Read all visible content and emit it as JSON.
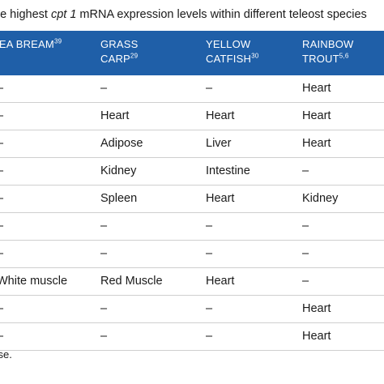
{
  "caption": {
    "prefix": "he highest ",
    "gene": "cpt 1",
    "suffix": " mRNA expression levels within different teleost species"
  },
  "table": {
    "headers": [
      {
        "line1": "SEA BREAM",
        "sup1": "39",
        "line2": "",
        "sup2": ""
      },
      {
        "line1": "GRASS",
        "sup1": "",
        "line2": "CARP",
        "sup2": "29"
      },
      {
        "line1": "YELLOW",
        "sup1": "",
        "line2": "CATFISH",
        "sup2": "30"
      },
      {
        "line1": "RAINBOW",
        "sup1": "",
        "line2": "TROUT",
        "sup2": "5,6"
      }
    ],
    "rows": [
      [
        "–",
        "–",
        "–",
        "Heart"
      ],
      [
        "–",
        "Heart",
        "Heart",
        "Heart"
      ],
      [
        "–",
        "Adipose",
        "Liver",
        "Heart"
      ],
      [
        "–",
        "Kidney",
        "Intestine",
        "–"
      ],
      [
        "–",
        "Spleen",
        "Heart",
        "Kidney"
      ],
      [
        "–",
        "–",
        "–",
        "–"
      ],
      [
        "–",
        "–",
        "–",
        "–"
      ],
      [
        "White muscle",
        "Red Muscle",
        "Heart",
        "–"
      ],
      [
        "–",
        "–",
        "–",
        "Heart"
      ],
      [
        "–",
        "–",
        "–",
        "Heart"
      ]
    ]
  },
  "footnote": "rase."
}
